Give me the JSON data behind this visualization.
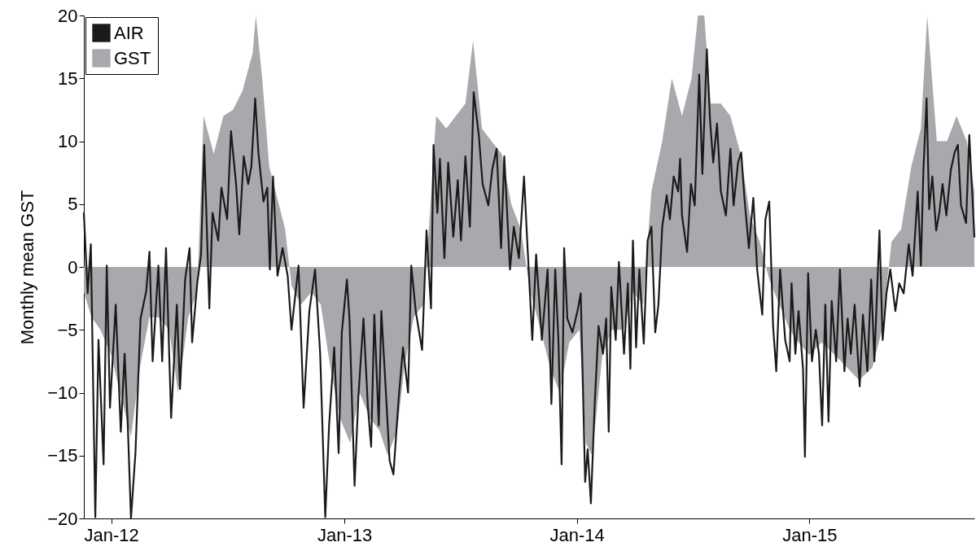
{
  "chart_data": {
    "type": "line",
    "ylabel": "Monthly mean GST",
    "xlim": [
      "2011-11-19",
      "2015-09-17"
    ],
    "ylim": [
      -20,
      20
    ],
    "yticks": [
      -20,
      -15,
      -10,
      -5,
      0,
      5,
      10,
      15,
      20
    ],
    "xticks": [
      {
        "value": "2012-01-01",
        "label": "Jan-12"
      },
      {
        "value": "2013-01-01",
        "label": "Jan-13"
      },
      {
        "value": "2014-01-01",
        "label": "Jan-14"
      },
      {
        "value": "2015-01-01",
        "label": "Jan-15"
      }
    ],
    "grid": false,
    "legend": "top left",
    "line_style": "solid",
    "series": [
      {
        "name": "AIR",
        "color": "#1a1a1a",
        "x": [
          "2011-11-19",
          "2011-11-25",
          "2011-11-30",
          "2011-12-07",
          "2011-12-12",
          "2011-12-20",
          "2011-12-25",
          "2011-12-30",
          "2012-01-08",
          "2012-01-16",
          "2012-01-22",
          "2012-01-27",
          "2012-02-01",
          "2012-02-08",
          "2012-02-16",
          "2012-02-25",
          "2012-03-01",
          "2012-03-06",
          "2012-03-15",
          "2012-03-21",
          "2012-03-27",
          "2012-04-04",
          "2012-04-13",
          "2012-04-18",
          "2012-04-26",
          "2012-05-03",
          "2012-05-07",
          "2012-05-15",
          "2012-05-21",
          "2012-05-26",
          "2012-06-03",
          "2012-06-08",
          "2012-06-17",
          "2012-06-22",
          "2012-07-01",
          "2012-07-07",
          "2012-07-15",
          "2012-07-20",
          "2012-07-27",
          "2012-08-03",
          "2012-08-08",
          "2012-08-14",
          "2012-08-19",
          "2012-08-27",
          "2012-09-02",
          "2012-09-06",
          "2012-09-11",
          "2012-09-18",
          "2012-09-26",
          "2012-10-04",
          "2012-10-10",
          "2012-10-21",
          "2012-10-29",
          "2012-11-07",
          "2012-11-16",
          "2012-11-24",
          "2012-12-02",
          "2012-12-08",
          "2012-12-16",
          "2012-12-23",
          "2012-12-28",
          "2013-01-05",
          "2013-01-09",
          "2013-01-17",
          "2013-01-23",
          "2013-01-31",
          "2013-02-07",
          "2013-02-12",
          "2013-02-17",
          "2013-02-24",
          "2013-02-28",
          "2013-03-06",
          "2013-03-13",
          "2013-03-19",
          "2013-03-27",
          "2013-04-03",
          "2013-04-11",
          "2013-04-16",
          "2013-04-23",
          "2013-05-03",
          "2013-05-10",
          "2013-05-17",
          "2013-05-21",
          "2013-05-27",
          "2013-05-31",
          "2013-06-07",
          "2013-06-13",
          "2013-06-21",
          "2013-06-28",
          "2013-07-03",
          "2013-07-10",
          "2013-07-17",
          "2013-07-23",
          "2013-07-31",
          "2013-08-06",
          "2013-08-15",
          "2013-08-21",
          "2013-08-28",
          "2013-09-04",
          "2013-09-09",
          "2013-09-18",
          "2013-09-24",
          "2013-10-02",
          "2013-10-10",
          "2013-10-15",
          "2013-10-23",
          "2013-10-29",
          "2013-11-07",
          "2013-11-16",
          "2013-11-22",
          "2013-11-28",
          "2013-12-03",
          "2013-12-08",
          "2013-12-12",
          "2013-12-17",
          "2013-12-25",
          "2014-01-02",
          "2014-01-07",
          "2014-01-14",
          "2014-01-18",
          "2014-01-23",
          "2014-01-29",
          "2014-02-04",
          "2014-02-11",
          "2014-02-16",
          "2014-02-20",
          "2014-02-24",
          "2014-03-03",
          "2014-03-08",
          "2014-03-16",
          "2014-03-22",
          "2014-03-26",
          "2014-03-30",
          "2014-04-04",
          "2014-04-09",
          "2014-04-16",
          "2014-04-22",
          "2014-04-28",
          "2014-05-04",
          "2014-05-09",
          "2014-05-15",
          "2014-05-22",
          "2014-05-27",
          "2014-06-02",
          "2014-06-09",
          "2014-06-12",
          "2014-06-15",
          "2014-06-23",
          "2014-06-29",
          "2014-07-05",
          "2014-07-12",
          "2014-07-17",
          "2014-07-24",
          "2014-07-29",
          "2014-08-03",
          "2014-08-09",
          "2014-08-15",
          "2014-08-23",
          "2014-08-30",
          "2014-09-04",
          "2014-09-11",
          "2014-09-16",
          "2014-09-21",
          "2014-09-28",
          "2014-10-05",
          "2014-10-11",
          "2014-10-19",
          "2014-10-24",
          "2014-10-30",
          "2014-11-05",
          "2014-11-10",
          "2014-11-16",
          "2014-11-24",
          "2014-12-01",
          "2014-12-04",
          "2014-12-10",
          "2014-12-15",
          "2014-12-22",
          "2014-12-25",
          "2014-12-30",
          "2015-01-05",
          "2015-01-11",
          "2015-01-16",
          "2015-01-21",
          "2015-01-26",
          "2015-01-31",
          "2015-02-05",
          "2015-02-12",
          "2015-02-18",
          "2015-02-25",
          "2015-03-02",
          "2015-03-07",
          "2015-03-13",
          "2015-03-21",
          "2015-03-26",
          "2015-04-02",
          "2015-04-08",
          "2015-04-13",
          "2015-04-21",
          "2015-04-26",
          "2015-05-02",
          "2015-05-08",
          "2015-05-16",
          "2015-05-22",
          "2015-05-29",
          "2015-06-06",
          "2015-06-12",
          "2015-06-20",
          "2015-06-25",
          "2015-06-29",
          "2015-07-04",
          "2015-07-08",
          "2015-07-13",
          "2015-07-19",
          "2015-07-24",
          "2015-07-29",
          "2015-08-04",
          "2015-08-11",
          "2015-08-17",
          "2015-08-22",
          "2015-08-27",
          "2015-09-04",
          "2015-09-09",
          "2015-09-14",
          "2015-09-17"
        ],
        "values": [
          4.3,
          -2.1,
          1.8,
          -19.9,
          -5.8,
          -15.7,
          0.1,
          -11.2,
          -3,
          -13.1,
          -6.9,
          -12.6,
          -20,
          -14.8,
          -4.1,
          -1.9,
          1.2,
          -7.5,
          0.1,
          -7.5,
          1.5,
          -12,
          -3,
          -9.7,
          -1,
          1.5,
          -6,
          -1.3,
          1,
          9.7,
          -3.3,
          4.3,
          2.1,
          6.3,
          3.8,
          10.8,
          6.6,
          2.6,
          8.8,
          6.6,
          8,
          13.4,
          9.1,
          5.2,
          6.3,
          -0.2,
          7.2,
          -0.7,
          1.5,
          -0.7,
          -5,
          0.1,
          -11.2,
          -3.5,
          -0.2,
          -6.9,
          -19.9,
          -12.6,
          -6.4,
          -14.8,
          -5.2,
          -1,
          -4.1,
          -17.4,
          -10.3,
          -4.1,
          -11.2,
          -14.3,
          -3.8,
          -12.6,
          -3.5,
          -8.9,
          -15.4,
          -16.5,
          -10.6,
          -6.4,
          -10,
          0.1,
          -3.5,
          -6.6,
          2.9,
          -3.3,
          9.7,
          4.3,
          8.6,
          0.7,
          8.3,
          2.4,
          6.9,
          2.1,
          8.8,
          3.2,
          13.9,
          10.5,
          6.6,
          4.9,
          7.7,
          9.4,
          1.5,
          8.8,
          -0.2,
          3.2,
          0.7,
          7.2,
          2.1,
          -5.8,
          1,
          -5.8,
          -0.2,
          -10.9,
          -0.2,
          -5.8,
          -15.7,
          1.5,
          -4.1,
          -5.2,
          -3.5,
          -2.1,
          -17.1,
          -14.5,
          -18.8,
          -10.9,
          -4.7,
          -6.9,
          -4.1,
          -13.1,
          -1.6,
          -5.8,
          0.4,
          -6.9,
          -1.3,
          -8.1,
          2.1,
          -6.4,
          -0.2,
          -6.1,
          2.1,
          3.2,
          -5.2,
          -3,
          3.2,
          5.7,
          3.8,
          7.2,
          6,
          8.6,
          4.1,
          1.2,
          6.6,
          4.9,
          15.3,
          7.4,
          17.3,
          11.7,
          8.3,
          11.4,
          6,
          4.1,
          9.4,
          4.9,
          8.3,
          9.1,
          5.5,
          1.5,
          5.5,
          -0.2,
          -3.8,
          3.8,
          5.2,
          -4.7,
          -8.3,
          -0.2,
          -5.8,
          -7.5,
          -1.3,
          -6.9,
          -3.5,
          -8.1,
          -15.1,
          -0.5,
          -7.5,
          -5,
          -6.9,
          -12.6,
          -3,
          -12.3,
          -2.7,
          -7.5,
          -0.2,
          -8.3,
          -4.1,
          -6.9,
          -3,
          -9.5,
          -3.8,
          -8.3,
          -1,
          -7.5,
          2.9,
          -5.8,
          -2.1,
          -0.2,
          -3.5,
          -1.3,
          -2.1,
          1.8,
          -0.7,
          6,
          0.1,
          7.7,
          13.4,
          4.6,
          7.2,
          2.9,
          4.3,
          6.6,
          4.1,
          7.7,
          9.1,
          9.7,
          4.9,
          3.5,
          10.5,
          5.5,
          2.4
        ]
      },
      {
        "name": "GST",
        "type": "area",
        "color": "#a7a9ac",
        "x": [
          "2011-11-19",
          "2011-12-01",
          "2011-12-15",
          "2012-01-01",
          "2012-01-15",
          "2012-02-01",
          "2012-02-15",
          "2012-03-01",
          "2012-03-15",
          "2012-04-01",
          "2012-04-15",
          "2012-05-01",
          "2012-05-15",
          "2012-05-25",
          "2012-06-10",
          "2012-06-25",
          "2012-07-10",
          "2012-07-25",
          "2012-08-10",
          "2012-08-15",
          "2012-08-25",
          "2012-09-05",
          "2012-09-15",
          "2012-09-30",
          "2012-10-10",
          "2012-10-25",
          "2012-11-10",
          "2012-11-25",
          "2012-12-10",
          "2012-12-25",
          "2013-01-10",
          "2013-01-25",
          "2013-02-10",
          "2013-02-25",
          "2013-03-10",
          "2013-03-25",
          "2013-04-05",
          "2013-04-20",
          "2013-05-05",
          "2013-05-15",
          "2013-05-25",
          "2013-06-10",
          "2013-06-25",
          "2013-07-10",
          "2013-07-22",
          "2013-08-05",
          "2013-08-20",
          "2013-09-05",
          "2013-09-20",
          "2013-10-05",
          "2013-10-20",
          "2013-11-05",
          "2013-11-20",
          "2013-12-05",
          "2013-12-20",
          "2014-01-05",
          "2014-01-15",
          "2014-01-25",
          "2014-02-10",
          "2014-02-25",
          "2014-03-15",
          "2014-03-30",
          "2014-04-15",
          "2014-04-28",
          "2014-05-15",
          "2014-05-30",
          "2014-06-15",
          "2014-06-30",
          "2014-07-10",
          "2014-07-20",
          "2014-07-30",
          "2014-08-15",
          "2014-08-30",
          "2014-09-15",
          "2014-09-30",
          "2014-10-15",
          "2014-10-30",
          "2014-11-15",
          "2014-12-01",
          "2014-12-15",
          "2015-01-01",
          "2015-01-20",
          "2015-02-10",
          "2015-03-01",
          "2015-03-20",
          "2015-04-10",
          "2015-04-25",
          "2015-05-10",
          "2015-05-25",
          "2015-06-10",
          "2015-06-25",
          "2015-07-05",
          "2015-07-20",
          "2015-08-05",
          "2015-08-20",
          "2015-09-05",
          "2015-09-17"
        ],
        "values": [
          -2,
          -4,
          -5,
          -7,
          -10,
          -13.5,
          -8,
          -4,
          -4,
          -5,
          -10,
          -4,
          -2,
          12,
          9,
          12,
          12.5,
          14,
          17,
          20,
          15,
          8,
          6,
          3,
          -1.5,
          -3,
          -2,
          -3,
          -8,
          -12,
          -14,
          -10,
          -12,
          -13,
          -15,
          -13,
          -8,
          -4,
          -3,
          4,
          12,
          11,
          12,
          13,
          18,
          11,
          10,
          9,
          5,
          3,
          -2,
          -5,
          -8,
          -10,
          -6,
          -5,
          -14,
          -15,
          -7,
          -5,
          -5,
          -2,
          -3,
          6,
          10,
          15,
          12,
          15,
          20,
          20,
          13,
          13,
          12,
          9,
          4,
          2,
          -1,
          -3,
          -5,
          -6,
          -7,
          -6,
          -7,
          -8,
          -9,
          -8,
          -5,
          2,
          3,
          8,
          11,
          20,
          10,
          10,
          12,
          10,
          6
        ]
      }
    ]
  }
}
